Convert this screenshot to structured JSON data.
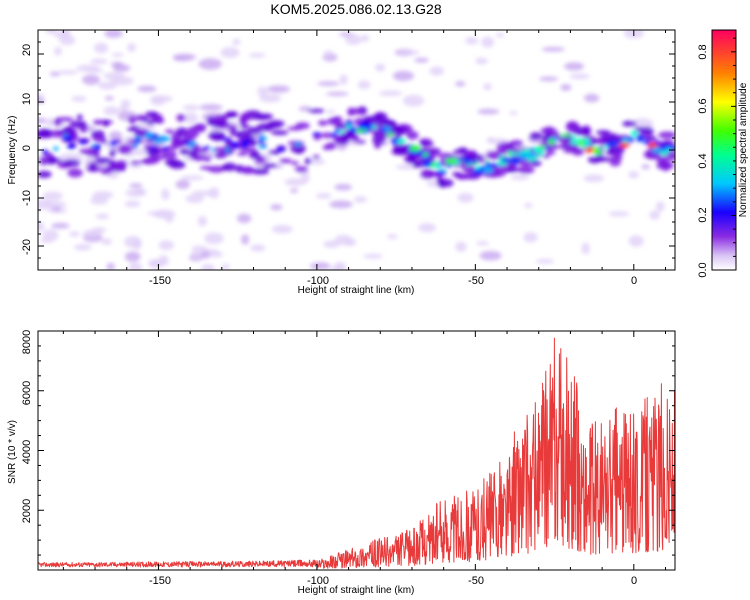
{
  "title": "KOM5.2025.086.02.13.G28",
  "chart_data": [
    {
      "type": "heatmap",
      "xlabel": "Height of straight line (km)",
      "ylabel": "Frequency (Hz)",
      "xlim": [
        -188,
        13
      ],
      "ylim": [
        -25,
        25
      ],
      "xticks": [
        "-150",
        "-100",
        "-50",
        "0"
      ],
      "yticks": [
        "20",
        "10",
        "0",
        "-10",
        "-20"
      ],
      "colorbar": {
        "label": "Normalized spectral amplitude",
        "ticks": [
          "0.0",
          "0.2",
          "0.4",
          "0.6",
          "0.8"
        ],
        "range": [
          0,
          0.88
        ]
      },
      "ridge": [
        {
          "x": -185,
          "y": 2
        },
        {
          "x": -175,
          "y": 1
        },
        {
          "x": -165,
          "y": 0
        },
        {
          "x": -155,
          "y": 2
        },
        {
          "x": -145,
          "y": 1
        },
        {
          "x": -135,
          "y": 0
        },
        {
          "x": -125,
          "y": 2
        },
        {
          "x": -115,
          "y": 1
        },
        {
          "x": -105,
          "y": 1
        },
        {
          "x": -95,
          "y": 4
        },
        {
          "x": -88,
          "y": 5
        },
        {
          "x": -80,
          "y": 4
        },
        {
          "x": -72,
          "y": 2
        },
        {
          "x": -65,
          "y": -2
        },
        {
          "x": -60,
          "y": -4
        },
        {
          "x": -55,
          "y": -2
        },
        {
          "x": -48,
          "y": -4
        },
        {
          "x": -42,
          "y": -2
        },
        {
          "x": -35,
          "y": -1
        },
        {
          "x": -28,
          "y": 0
        },
        {
          "x": -22,
          "y": 4
        },
        {
          "x": -18,
          "y": 2
        },
        {
          "x": -12,
          "y": 0
        },
        {
          "x": -5,
          "y": 1
        },
        {
          "x": 0,
          "y": 3
        },
        {
          "x": 5,
          "y": 1
        },
        {
          "x": 10,
          "y": 0
        }
      ]
    },
    {
      "type": "line",
      "xlabel": "Height of straight line (km)",
      "ylabel": "SNR (10 * v/v)",
      "xlim": [
        -188,
        13
      ],
      "ylim": [
        0,
        8000
      ],
      "xticks": [
        "-150",
        "-100",
        "-50",
        "0"
      ],
      "yticks": [
        "2000",
        "4000",
        "6000",
        "8000"
      ],
      "color": "#e83a3a",
      "envelope": [
        {
          "x": -188,
          "y": 250
        },
        {
          "x": -120,
          "y": 300
        },
        {
          "x": -100,
          "y": 350
        },
        {
          "x": -85,
          "y": 900
        },
        {
          "x": -70,
          "y": 1400
        },
        {
          "x": -60,
          "y": 2500
        },
        {
          "x": -50,
          "y": 2800
        },
        {
          "x": -40,
          "y": 4000
        },
        {
          "x": -35,
          "y": 5500
        },
        {
          "x": -30,
          "y": 5800
        },
        {
          "x": -25,
          "y": 8000
        },
        {
          "x": -20,
          "y": 7200
        },
        {
          "x": -15,
          "y": 5000
        },
        {
          "x": -10,
          "y": 5300
        },
        {
          "x": -5,
          "y": 5800
        },
        {
          "x": 0,
          "y": 5300
        },
        {
          "x": 5,
          "y": 6000
        },
        {
          "x": 10,
          "y": 6500
        },
        {
          "x": 13,
          "y": 6400
        }
      ]
    }
  ]
}
